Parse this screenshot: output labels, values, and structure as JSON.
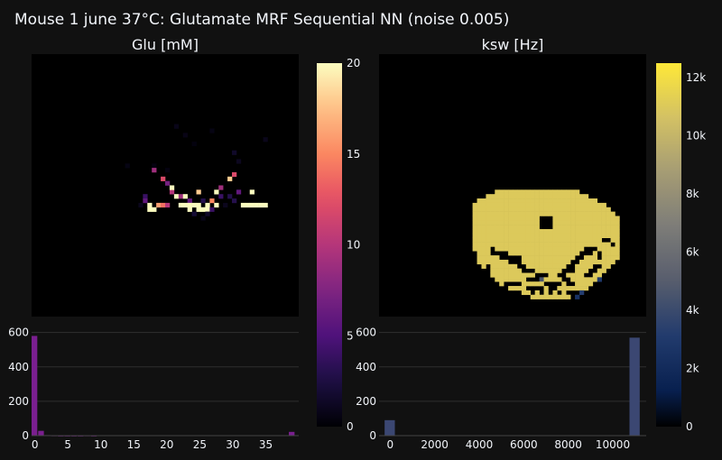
{
  "figure": {
    "title": "Mouse 1 june 37°C: Glutamate MRF Sequential NN (noise 0.005)",
    "background": "#111111"
  },
  "chart_data": [
    {
      "type": "heatmap",
      "title": "Glu [mM]",
      "colorscale": "magma",
      "colorbar": {
        "range": [
          0,
          20
        ],
        "ticks": [
          0,
          5,
          10,
          15,
          20
        ],
        "tick_labels": [
          "0",
          "5",
          "10",
          "15",
          "20"
        ]
      },
      "grid": [
        60,
        60
      ],
      "cells": [
        [
          32,
          16,
          0.8
        ],
        [
          40,
          17,
          0.6
        ],
        [
          34,
          18,
          0.7
        ],
        [
          21,
          25,
          0.6
        ],
        [
          27,
          25,
          0.5
        ],
        [
          30,
          26,
          0.5
        ],
        [
          45,
          22,
          1.5
        ],
        [
          46,
          24,
          1.1
        ],
        [
          52,
          19,
          0.9
        ],
        [
          36,
          20,
          0.4
        ],
        [
          27,
          26,
          9.0
        ],
        [
          29,
          28,
          12.0
        ],
        [
          30,
          29,
          7.0
        ],
        [
          31,
          31,
          10.0
        ],
        [
          44,
          28,
          18.0
        ],
        [
          45,
          27,
          12.0
        ],
        [
          42,
          30,
          9.0
        ],
        [
          31,
          30,
          20.0
        ],
        [
          37,
          31,
          18.0
        ],
        [
          41,
          31,
          20.0
        ],
        [
          46,
          31,
          6.0
        ],
        [
          32,
          32,
          20.0
        ],
        [
          33,
          32,
          9.0
        ],
        [
          34,
          32,
          20.0
        ],
        [
          35,
          33,
          6.0
        ],
        [
          42,
          32,
          4.0
        ],
        [
          49,
          31,
          20.0
        ],
        [
          25,
          32,
          4.0
        ],
        [
          25,
          33,
          6.0
        ],
        [
          26,
          34,
          20.0
        ],
        [
          28,
          34,
          16.0
        ],
        [
          29,
          34,
          14.0
        ],
        [
          30,
          34,
          10.0
        ],
        [
          33,
          34,
          20.0
        ],
        [
          34,
          34,
          20.0
        ],
        [
          35,
          34,
          20.0
        ],
        [
          36,
          34,
          20.0
        ],
        [
          37,
          34,
          20.0
        ],
        [
          39,
          34,
          20.0
        ],
        [
          40,
          33,
          15.0
        ],
        [
          41,
          34,
          20.0
        ],
        [
          38,
          33,
          3.0
        ],
        [
          44,
          32,
          3.0
        ],
        [
          45,
          33,
          3.0
        ],
        [
          47,
          34,
          20.0
        ],
        [
          48,
          34,
          20.0
        ],
        [
          49,
          34,
          20.0
        ],
        [
          50,
          34,
          20.0
        ],
        [
          51,
          34,
          20.0
        ],
        [
          52,
          34,
          20.0
        ],
        [
          26,
          35,
          20.0
        ],
        [
          27,
          35,
          20.0
        ],
        [
          35,
          35,
          20.0
        ],
        [
          37,
          35,
          20.0
        ],
        [
          38,
          35,
          20.0
        ],
        [
          39,
          35,
          20.0
        ],
        [
          40,
          35,
          4.0
        ],
        [
          36,
          36,
          2.0
        ],
        [
          39,
          36,
          1.5
        ],
        [
          24,
          34,
          1.0
        ],
        [
          43,
          34,
          1.0
        ],
        [
          38,
          37,
          0.8
        ]
      ]
    },
    {
      "type": "bar",
      "title": "",
      "x": [
        0,
        1,
        2,
        3,
        4,
        5,
        6,
        7,
        8,
        9,
        39
      ],
      "values": [
        580,
        28,
        3,
        2,
        1,
        1,
        1,
        1,
        2,
        1,
        22
      ],
      "bin_width": 1,
      "xlim": [
        -0.5,
        40
      ],
      "ylim": [
        0,
        640
      ],
      "xticks": [
        0,
        5,
        10,
        15,
        20,
        25,
        30,
        35
      ],
      "yticks": [
        0,
        200,
        400,
        600
      ],
      "color": "#7a1f8f"
    },
    {
      "type": "heatmap",
      "title": "ksw [Hz]",
      "colorscale": "cividis",
      "colorbar": {
        "range": [
          0,
          12500
        ],
        "ticks": [
          0,
          2000,
          4000,
          6000,
          8000,
          10000,
          12000
        ],
        "tick_labels": [
          "0",
          "2k",
          "4k",
          "6k",
          "8k",
          "10k",
          "12k"
        ]
      },
      "grid": [
        60,
        60
      ],
      "value": 11000,
      "region_rows": [
        [
          31,
          26,
          44
        ],
        [
          32,
          24,
          46
        ],
        [
          33,
          22,
          48
        ],
        [
          34,
          21,
          50
        ],
        [
          35,
          21,
          51
        ],
        [
          36,
          21,
          52
        ],
        [
          37,
          21,
          53
        ],
        [
          38,
          21,
          53
        ],
        [
          39,
          21,
          53
        ],
        [
          40,
          21,
          53
        ],
        [
          41,
          21,
          53
        ],
        [
          42,
          21,
          53
        ],
        [
          43,
          21,
          53
        ],
        [
          44,
          21,
          53
        ],
        [
          45,
          22,
          53
        ],
        [
          46,
          22,
          53
        ],
        [
          47,
          22,
          52
        ],
        [
          48,
          23,
          51
        ],
        [
          49,
          24,
          50
        ],
        [
          50,
          25,
          49
        ],
        [
          51,
          26,
          48
        ],
        [
          52,
          27,
          47
        ],
        [
          53,
          29,
          46
        ],
        [
          54,
          32,
          42
        ],
        [
          55,
          34,
          42
        ]
      ],
      "holes": [
        [
          36,
          37,
          1,
          2
        ],
        [
          38,
          37,
          1,
          2
        ],
        [
          37,
          37,
          1,
          1
        ],
        [
          37,
          38,
          1,
          1
        ],
        [
          36,
          39,
          3,
          1
        ],
        [
          25,
          45,
          4,
          1
        ],
        [
          27,
          46,
          5,
          1
        ],
        [
          29,
          47,
          3,
          1
        ],
        [
          31,
          48,
          2,
          1
        ],
        [
          32,
          49,
          3,
          1
        ],
        [
          35,
          50,
          3,
          1
        ],
        [
          33,
          51,
          3,
          1
        ],
        [
          37,
          52,
          3,
          1
        ],
        [
          28,
          52,
          4,
          1
        ],
        [
          33,
          53,
          4,
          1
        ],
        [
          38,
          53,
          2,
          1
        ],
        [
          46,
          44,
          3,
          1
        ],
        [
          45,
          45,
          3,
          1
        ],
        [
          44,
          46,
          2,
          1
        ],
        [
          43,
          47,
          2,
          1
        ],
        [
          42,
          48,
          2,
          1
        ],
        [
          41,
          49,
          3,
          1
        ],
        [
          40,
          50,
          2,
          1
        ],
        [
          41,
          51,
          2,
          1
        ],
        [
          39,
          52,
          2,
          1
        ],
        [
          42,
          52,
          2,
          1
        ],
        [
          46,
          50,
          2,
          1
        ],
        [
          47,
          49,
          2,
          1
        ],
        [
          48,
          48,
          2,
          1
        ],
        [
          49,
          45,
          1,
          2
        ],
        [
          50,
          42,
          2,
          1
        ],
        [
          52,
          43,
          1,
          1
        ],
        [
          24,
          48,
          1,
          2
        ],
        [
          23,
          50,
          1,
          1
        ],
        [
          34,
          54,
          1,
          1
        ],
        [
          36,
          54,
          1,
          1
        ],
        [
          38,
          54,
          1,
          1
        ],
        [
          40,
          54,
          1,
          1
        ],
        [
          42,
          54,
          1,
          1
        ],
        [
          25,
          44,
          1,
          1
        ]
      ],
      "extras": [
        [
          44,
          55,
          2500
        ],
        [
          45,
          54,
          3200
        ],
        [
          36,
          51,
          4500
        ],
        [
          49,
          51,
          3000
        ]
      ]
    },
    {
      "type": "bar",
      "title": "",
      "x": [
        0,
        11000
      ],
      "values": [
        90,
        570
      ],
      "bin_width": 500,
      "xlim": [
        -500,
        11500
      ],
      "ylim": [
        0,
        640
      ],
      "xticks": [
        0,
        2000,
        4000,
        6000,
        8000,
        10000
      ],
      "yticks": [
        0,
        200,
        400,
        600
      ],
      "color": "#3b4772"
    }
  ]
}
